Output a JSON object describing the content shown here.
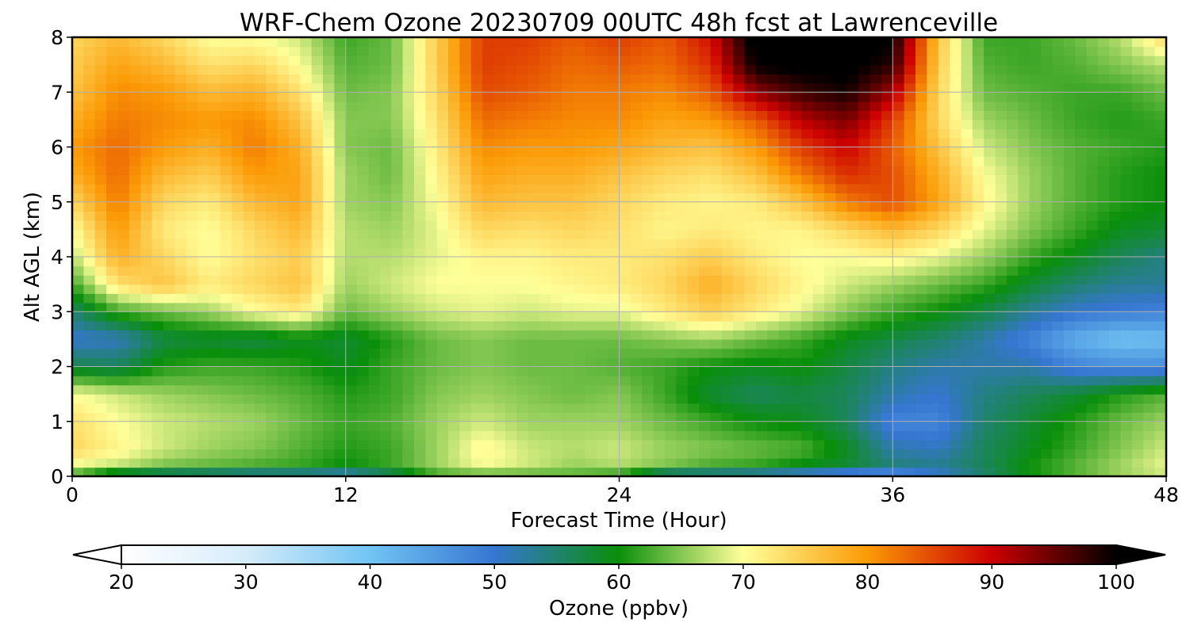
{
  "chart_data": {
    "type": "heatmap",
    "title": "WRF-Chem Ozone  20230709 00UTC 48h fcst at Lawrenceville",
    "xlabel": "Forecast Time (Hour)",
    "ylabel": "Alt AGL (km)",
    "xlim": [
      0,
      48
    ],
    "ylim": [
      0,
      8
    ],
    "x_ticks": [
      0,
      12,
      24,
      36,
      48
    ],
    "y_ticks": [
      0,
      1,
      2,
      3,
      4,
      5,
      6,
      7,
      8
    ],
    "grid": true,
    "x": [
      0,
      2,
      4,
      6,
      8,
      10,
      12,
      14,
      16,
      18,
      20,
      22,
      24,
      26,
      28,
      30,
      32,
      34,
      36,
      38,
      40,
      42,
      44,
      46,
      48
    ],
    "y": [
      0,
      0.25,
      0.5,
      1,
      1.5,
      2,
      2.5,
      3,
      3.5,
      4,
      4.5,
      5,
      5.5,
      6,
      6.5,
      7,
      7.5,
      8
    ],
    "values": [
      [
        62,
        55,
        53,
        52,
        51,
        51,
        50,
        55,
        62,
        63,
        63,
        63,
        61,
        52,
        51,
        50,
        48,
        46,
        46,
        50,
        55,
        60,
        63,
        66,
        68
      ],
      [
        70,
        68,
        65,
        64,
        63,
        62,
        60,
        62,
        66,
        70,
        68,
        66,
        67,
        65,
        63,
        62,
        60,
        58,
        54,
        53,
        56,
        60,
        63,
        66,
        69
      ],
      [
        74,
        71,
        68,
        66,
        65,
        63,
        61,
        62,
        66,
        71,
        68,
        67,
        68,
        66,
        65,
        64,
        63,
        59,
        52,
        51,
        56,
        59,
        62,
        65,
        68
      ],
      [
        73,
        70,
        68,
        67,
        66,
        64,
        62,
        63,
        66,
        68,
        66,
        66,
        66,
        64,
        62,
        60,
        59,
        56,
        48,
        48,
        55,
        58,
        61,
        64,
        66
      ],
      [
        70,
        68,
        66,
        65,
        64,
        63,
        61,
        62,
        65,
        66,
        65,
        64,
        65,
        62,
        58,
        56,
        57,
        56,
        52,
        50,
        54,
        56,
        58,
        61,
        63
      ],
      [
        57,
        56,
        61,
        62,
        62,
        61,
        59,
        62,
        64,
        65,
        64,
        64,
        63,
        62,
        60,
        59,
        60,
        57,
        54,
        52,
        52,
        52,
        48,
        47,
        47
      ],
      [
        50,
        51,
        57,
        58,
        57,
        59,
        58,
        61,
        64,
        65,
        64,
        64,
        64,
        65,
        66,
        64,
        62,
        59,
        57,
        55,
        52,
        48,
        43,
        40,
        41
      ],
      [
        55,
        62,
        64,
        66,
        70,
        72,
        64,
        66,
        68,
        69,
        68,
        69,
        69,
        72,
        75,
        72,
        69,
        65,
        62,
        60,
        57,
        53,
        50,
        49,
        48
      ],
      [
        62,
        73,
        76,
        72,
        74,
        76,
        66,
        68,
        70,
        70,
        70,
        71,
        72,
        74,
        78,
        74,
        71,
        68,
        66,
        64,
        62,
        58,
        55,
        53,
        53
      ],
      [
        67,
        78,
        74,
        70,
        73,
        75,
        67,
        67,
        69,
        71,
        71,
        72,
        72,
        73,
        75,
        72,
        70,
        70,
        71,
        69,
        66,
        62,
        59,
        56,
        54
      ],
      [
        70,
        80,
        72,
        70,
        74,
        77,
        67,
        66,
        69,
        74,
        73,
        74,
        73,
        71,
        72,
        71,
        71,
        74,
        77,
        74,
        69,
        65,
        62,
        59,
        58
      ],
      [
        74,
        82,
        74,
        72,
        77,
        79,
        66,
        65,
        70,
        77,
        76,
        76,
        74,
        72,
        71,
        72,
        76,
        82,
        85,
        79,
        71,
        66,
        63,
        61,
        60
      ],
      [
        78,
        83,
        77,
        75,
        80,
        79,
        66,
        64,
        71,
        79,
        78,
        78,
        76,
        74,
        73,
        76,
        82,
        87,
        85,
        78,
        70,
        66,
        63,
        61,
        60
      ],
      [
        80,
        83,
        80,
        78,
        82,
        78,
        65,
        64,
        72,
        81,
        80,
        80,
        79,
        77,
        76,
        80,
        86,
        90,
        84,
        76,
        68,
        65,
        63,
        62,
        61
      ],
      [
        78,
        82,
        81,
        80,
        81,
        76,
        65,
        65,
        73,
        83,
        82,
        81,
        81,
        79,
        80,
        84,
        91,
        94,
        86,
        74,
        66,
        64,
        62,
        61,
        62
      ],
      [
        76,
        81,
        80,
        77,
        78,
        73,
        64,
        65,
        74,
        85,
        84,
        82,
        82,
        81,
        84,
        93,
        97,
        99,
        92,
        74,
        64,
        63,
        62,
        62,
        64
      ],
      [
        75,
        79,
        77,
        73,
        74,
        70,
        63,
        64,
        75,
        86,
        85,
        83,
        84,
        83,
        87,
        100,
        101,
        101,
        98,
        75,
        63,
        62,
        63,
        65,
        67
      ],
      [
        74,
        77,
        74,
        70,
        70,
        68,
        62,
        64,
        75,
        86,
        86,
        84,
        86,
        84,
        89,
        102,
        102,
        102,
        100,
        76,
        62,
        62,
        64,
        67,
        74
      ]
    ],
    "colorbar": {
      "label": "Ozone  (ppbv)",
      "min": 20,
      "max": 100,
      "ticks": [
        20,
        30,
        40,
        50,
        60,
        70,
        80,
        90,
        100
      ],
      "extend": "both",
      "colors": [
        "#ffffff",
        "#d6ecfa",
        "#71c4f3",
        "#3676d1",
        "#0a8f0a",
        "#ffff99",
        "#fb9a06",
        "#cc0000",
        "#000000"
      ]
    }
  }
}
